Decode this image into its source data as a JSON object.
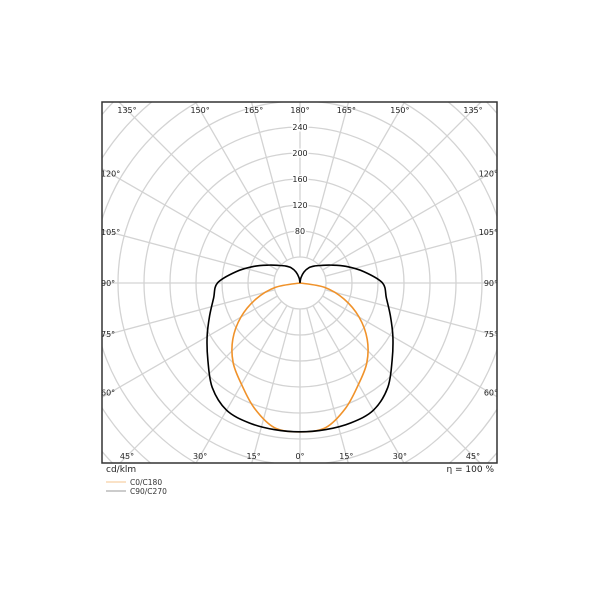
{
  "chart_data": {
    "type": "polar-line",
    "unit_label": "cd/klm",
    "efficiency_label": "η = 100 %",
    "radial_ticks": [
      80,
      120,
      160,
      200,
      240
    ],
    "radial_grid_step": 40,
    "angle_step": 15,
    "angle_labels": [
      {
        "angle": 0,
        "text": "0°"
      },
      {
        "angle": 15,
        "text": "15°"
      },
      {
        "angle": -15,
        "text": "15°"
      },
      {
        "angle": 30,
        "text": "30°"
      },
      {
        "angle": -30,
        "text": "30°"
      },
      {
        "angle": 45,
        "text": "45°"
      },
      {
        "angle": -45,
        "text": "45°"
      },
      {
        "angle": 60,
        "text": "60°"
      },
      {
        "angle": -60,
        "text": "60°"
      },
      {
        "angle": 75,
        "text": "75°"
      },
      {
        "angle": -75,
        "text": "75°"
      },
      {
        "angle": 90,
        "text": "90°"
      },
      {
        "angle": -90,
        "text": "90°"
      },
      {
        "angle": 105,
        "text": "105°"
      },
      {
        "angle": -105,
        "text": "105°"
      },
      {
        "angle": 120,
        "text": "120°"
      },
      {
        "angle": -120,
        "text": "120°"
      },
      {
        "angle": 135,
        "text": "135°"
      },
      {
        "angle": -135,
        "text": "135°"
      },
      {
        "angle": 150,
        "text": "150°"
      },
      {
        "angle": -150,
        "text": "150°"
      },
      {
        "angle": 165,
        "text": "165°"
      },
      {
        "angle": -165,
        "text": "165°"
      },
      {
        "angle": 180,
        "text": "180°"
      }
    ],
    "grid": true,
    "legend_position": "bottom-left",
    "series": [
      {
        "name": "C0/C180",
        "color": "#f0922a",
        "legend_color": "#f5c58f",
        "angles": [
          0,
          10,
          20,
          30,
          40,
          50,
          60,
          70,
          80,
          90
        ],
        "values": [
          229,
          226,
          205,
          180,
          160,
          135,
          105,
          72,
          38,
          0
        ]
      },
      {
        "name": "C90/C270",
        "color": "#000000",
        "legend_color": "#999999",
        "angles": [
          0,
          10,
          20,
          30,
          40,
          50,
          60,
          70,
          80,
          90,
          100,
          110,
          120,
          130,
          140,
          150,
          160,
          170,
          180
        ],
        "values": [
          229,
          229,
          229,
          226,
          210,
          185,
          165,
          148,
          135,
          127,
          100,
          75,
          55,
          42,
          34,
          27,
          18,
          8,
          0
        ]
      }
    ]
  }
}
